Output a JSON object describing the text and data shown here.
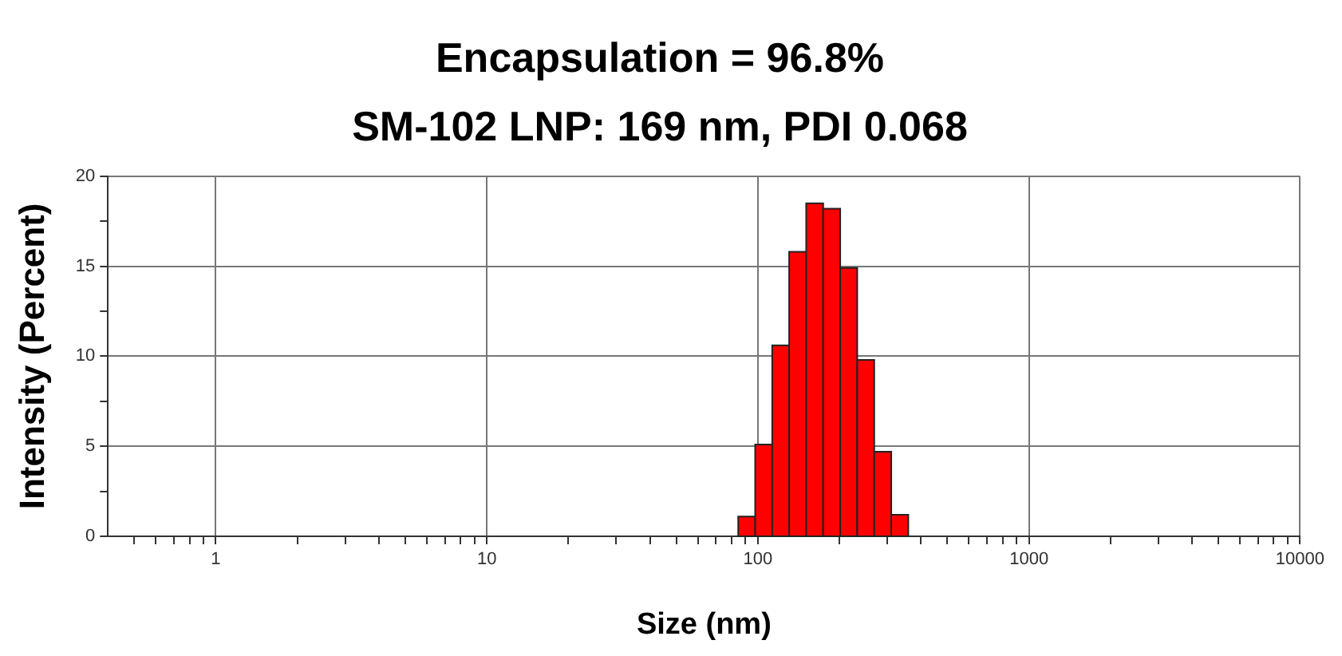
{
  "chart_data": {
    "type": "histogram",
    "title": "Encapsulation = 96.8%",
    "subtitle": "SM-102 LNP: 169 nm, PDI 0.068",
    "xlabel": "Size (nm)",
    "ylabel": "Intensity (Percent)",
    "bins": [
      84.6,
      97.7,
      112.9,
      130.4,
      150.7,
      174.1,
      201.2,
      232.5,
      268.6,
      310.4,
      358.7
    ],
    "values": [
      1.1,
      5.1,
      10.6,
      15.8,
      18.5,
      18.2,
      14.9,
      9.8,
      4.7,
      1.2
    ],
    "color": "#ff0000",
    "log": "x",
    "grid": true,
    "xlim": [
      0.4,
      10000
    ],
    "xticks": [
      {
        "value": 0.5,
        "label": null
      },
      {
        "value": 0.6,
        "label": null
      },
      {
        "value": 0.7,
        "label": null
      },
      {
        "value": 0.8,
        "label": null
      },
      {
        "value": 0.9,
        "label": null
      },
      1,
      {
        "value": 2,
        "label": null
      },
      {
        "value": 3,
        "label": null
      },
      {
        "value": 4,
        "label": null
      },
      {
        "value": 5,
        "label": null
      },
      {
        "value": 6,
        "label": null
      },
      {
        "value": 7,
        "label": null
      },
      {
        "value": 8,
        "label": null
      },
      {
        "value": 9,
        "label": null
      },
      10,
      {
        "value": 20,
        "label": null
      },
      {
        "value": 30,
        "label": null
      },
      {
        "value": 40,
        "label": null
      },
      {
        "value": 50,
        "label": null
      },
      {
        "value": 60,
        "label": null
      },
      {
        "value": 70,
        "label": null
      },
      {
        "value": 80,
        "label": null
      },
      {
        "value": 90,
        "label": null
      },
      100,
      {
        "value": 200,
        "label": null
      },
      {
        "value": 300,
        "label": null
      },
      {
        "value": 400,
        "label": null
      },
      {
        "value": 500,
        "label": null
      },
      {
        "value": 600,
        "label": null
      },
      {
        "value": 700,
        "label": null
      },
      {
        "value": 800,
        "label": null
      },
      {
        "value": 900,
        "label": null
      },
      1000,
      {
        "value": 2000,
        "label": null
      },
      {
        "value": 3000,
        "label": null
      },
      {
        "value": 4000,
        "label": null
      },
      {
        "value": 5000,
        "label": null
      },
      {
        "value": 6000,
        "label": null
      },
      {
        "value": 7000,
        "label": null
      },
      {
        "value": 8000,
        "label": null
      },
      {
        "value": 9000,
        "label": null
      },
      10000
    ],
    "ylim": [
      0,
      20
    ],
    "yticks": [
      0,
      {
        "value": 2.5,
        "label": null
      },
      5,
      {
        "value": 7.5,
        "label": null
      },
      10,
      {
        "value": 12.5,
        "label": null
      },
      15,
      {
        "value": 17.5,
        "label": null
      },
      20
    ]
  }
}
